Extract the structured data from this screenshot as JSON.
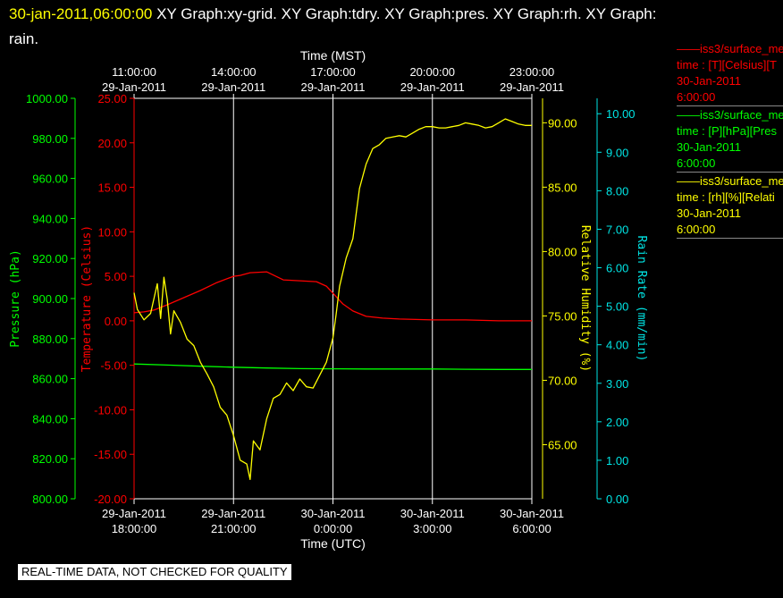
{
  "header": {
    "timestamp": "30-jan-2011,06:00:00",
    "graph_list_line1": " XY Graph:xy-grid.  XY Graph:tdry.  XY Graph:pres.  XY Graph:rh.  XY Graph:",
    "graph_list_line2": "rain."
  },
  "legend": [
    {
      "line": "——iss3/surface_me",
      "var": "time : [T][Celsius][T",
      "date": "30-Jan-2011",
      "time": "6:00:00",
      "color": "#ff0000"
    },
    {
      "line": "——iss3/surface_me",
      "var": "time : [P][hPa][Pres",
      "date": "30-Jan-2011",
      "time": "6:00:00",
      "color": "#00ff00"
    },
    {
      "line": "——iss3/surface_me",
      "var": "time : [rh][%][Relati",
      "date": "30-Jan-2011",
      "time": "6:00:00",
      "color": "#ffff00"
    }
  ],
  "footer": {
    "quality_note": "REAL-TIME DATA, NOT CHECKED FOR QUALITY"
  },
  "chart_data": {
    "type": "line",
    "colors": {
      "temperature": "#ff0000",
      "pressure": "#00ff00",
      "humidity": "#ffff00",
      "rain": "#00e5e5",
      "grid": "#ffffff"
    },
    "x_bottom": {
      "label": "Time (UTC)",
      "range_hours": [
        0,
        12
      ],
      "ticks": [
        {
          "h": 0,
          "date": "29-Jan-2011",
          "time": "18:00:00"
        },
        {
          "h": 3,
          "date": "29-Jan-2011",
          "time": "21:00:00"
        },
        {
          "h": 6,
          "date": "30-Jan-2011",
          "time": "0:00:00"
        },
        {
          "h": 9,
          "date": "30-Jan-2011",
          "time": "3:00:00"
        },
        {
          "h": 12,
          "date": "30-Jan-2011",
          "time": "6:00:00"
        }
      ]
    },
    "x_top": {
      "label": "Time (MST)",
      "ticks": [
        {
          "h": 0,
          "time": "11:00:00",
          "date": "29-Jan-2011"
        },
        {
          "h": 3,
          "time": "14:00:00",
          "date": "29-Jan-2011"
        },
        {
          "h": 6,
          "time": "17:00:00",
          "date": "29-Jan-2011"
        },
        {
          "h": 9,
          "time": "20:00:00",
          "date": "29-Jan-2011"
        },
        {
          "h": 12,
          "time": "23:00:00",
          "date": "29-Jan-2011"
        }
      ]
    },
    "y_pressure": {
      "label": "Pressure (hPa)",
      "ylim": [
        800,
        1000
      ],
      "ticks": [
        "800.00",
        "820.00",
        "840.00",
        "860.00",
        "880.00",
        "900.00",
        "920.00",
        "940.00",
        "960.00",
        "980.00",
        "1000.00"
      ]
    },
    "y_temperature": {
      "label": "Temperature (Celsius)",
      "ylim": [
        -20,
        25
      ],
      "ticks": [
        "-20.00",
        "-15.00",
        "-10.00",
        "-5.00",
        "0.00",
        "5.00",
        "10.00",
        "15.00",
        "20.00",
        "25.00"
      ]
    },
    "y_humidity": {
      "label": "Relative Humidity (%)",
      "ylim": [
        60.8,
        91.9
      ],
      "ticks": [
        "65.00",
        "70.00",
        "75.00",
        "80.00",
        "85.00",
        "90.00"
      ]
    },
    "y_rain": {
      "label": "Rain Rate (mm/min)",
      "ylim": [
        0,
        10.4
      ],
      "ticks": [
        "0.00",
        "1.00",
        "2.00",
        "3.00",
        "4.00",
        "5.00",
        "6.00",
        "7.00",
        "8.00",
        "9.00",
        "10.00"
      ]
    },
    "series": [
      {
        "name": "T",
        "axis": "temperature",
        "x": [
          0,
          0.3,
          0.6,
          1.0,
          1.5,
          2.0,
          2.5,
          3.0,
          3.2,
          3.5,
          4.0,
          4.5,
          5.0,
          5.5,
          5.8,
          6.0,
          6.3,
          6.6,
          7.0,
          7.5,
          8.0,
          9.0,
          10.0,
          11.0,
          12.0
        ],
        "y": [
          0.9,
          1.0,
          1.2,
          1.8,
          2.6,
          3.4,
          4.3,
          5.0,
          5.1,
          5.4,
          5.5,
          4.6,
          4.5,
          4.4,
          3.9,
          3.1,
          1.9,
          1.1,
          0.5,
          0.3,
          0.2,
          0.1,
          0.1,
          0.0,
          0.0
        ]
      },
      {
        "name": "P",
        "axis": "pressure",
        "x": [
          0,
          1,
          2,
          3,
          4,
          5,
          6,
          7,
          8,
          9,
          10,
          11,
          12
        ],
        "y": [
          867.3,
          866.8,
          866.2,
          865.7,
          865.3,
          865.0,
          864.9,
          864.8,
          864.8,
          864.8,
          864.7,
          864.6,
          864.6
        ]
      },
      {
        "name": "RH",
        "axis": "humidity",
        "x": [
          0,
          0.1,
          0.3,
          0.5,
          0.7,
          0.8,
          0.9,
          1.0,
          1.1,
          1.2,
          1.4,
          1.6,
          1.8,
          2.0,
          2.2,
          2.4,
          2.6,
          2.8,
          3.0,
          3.2,
          3.4,
          3.5,
          3.6,
          3.8,
          4.0,
          4.2,
          4.4,
          4.6,
          4.8,
          5.0,
          5.2,
          5.4,
          5.6,
          5.8,
          6.0,
          6.1,
          6.2,
          6.4,
          6.6,
          6.8,
          7.0,
          7.2,
          7.4,
          7.6,
          7.8,
          8.0,
          8.2,
          8.4,
          8.6,
          8.8,
          9.0,
          9.2,
          9.4,
          9.6,
          9.8,
          10.0,
          10.2,
          10.4,
          10.6,
          10.8,
          11.0,
          11.2,
          11.4,
          11.6,
          11.8,
          12.0
        ],
        "y": [
          76.8,
          75.5,
          74.7,
          75.2,
          77.5,
          74.8,
          78.0,
          76.3,
          73.6,
          75.4,
          74.5,
          73.2,
          72.7,
          71.4,
          70.5,
          69.5,
          67.9,
          67.3,
          65.7,
          63.8,
          63.5,
          62.3,
          65.3,
          64.6,
          67.0,
          68.6,
          68.9,
          69.8,
          69.2,
          70.1,
          69.5,
          69.4,
          70.4,
          71.4,
          73.3,
          75.2,
          77.3,
          79.5,
          81.0,
          84.9,
          86.8,
          88.0,
          88.3,
          88.8,
          88.9,
          89.0,
          88.9,
          89.2,
          89.5,
          89.7,
          89.7,
          89.6,
          89.6,
          89.7,
          89.8,
          90.0,
          89.9,
          89.8,
          89.6,
          89.7,
          90.0,
          90.3,
          90.1,
          89.9,
          89.8,
          89.8
        ]
      }
    ]
  }
}
